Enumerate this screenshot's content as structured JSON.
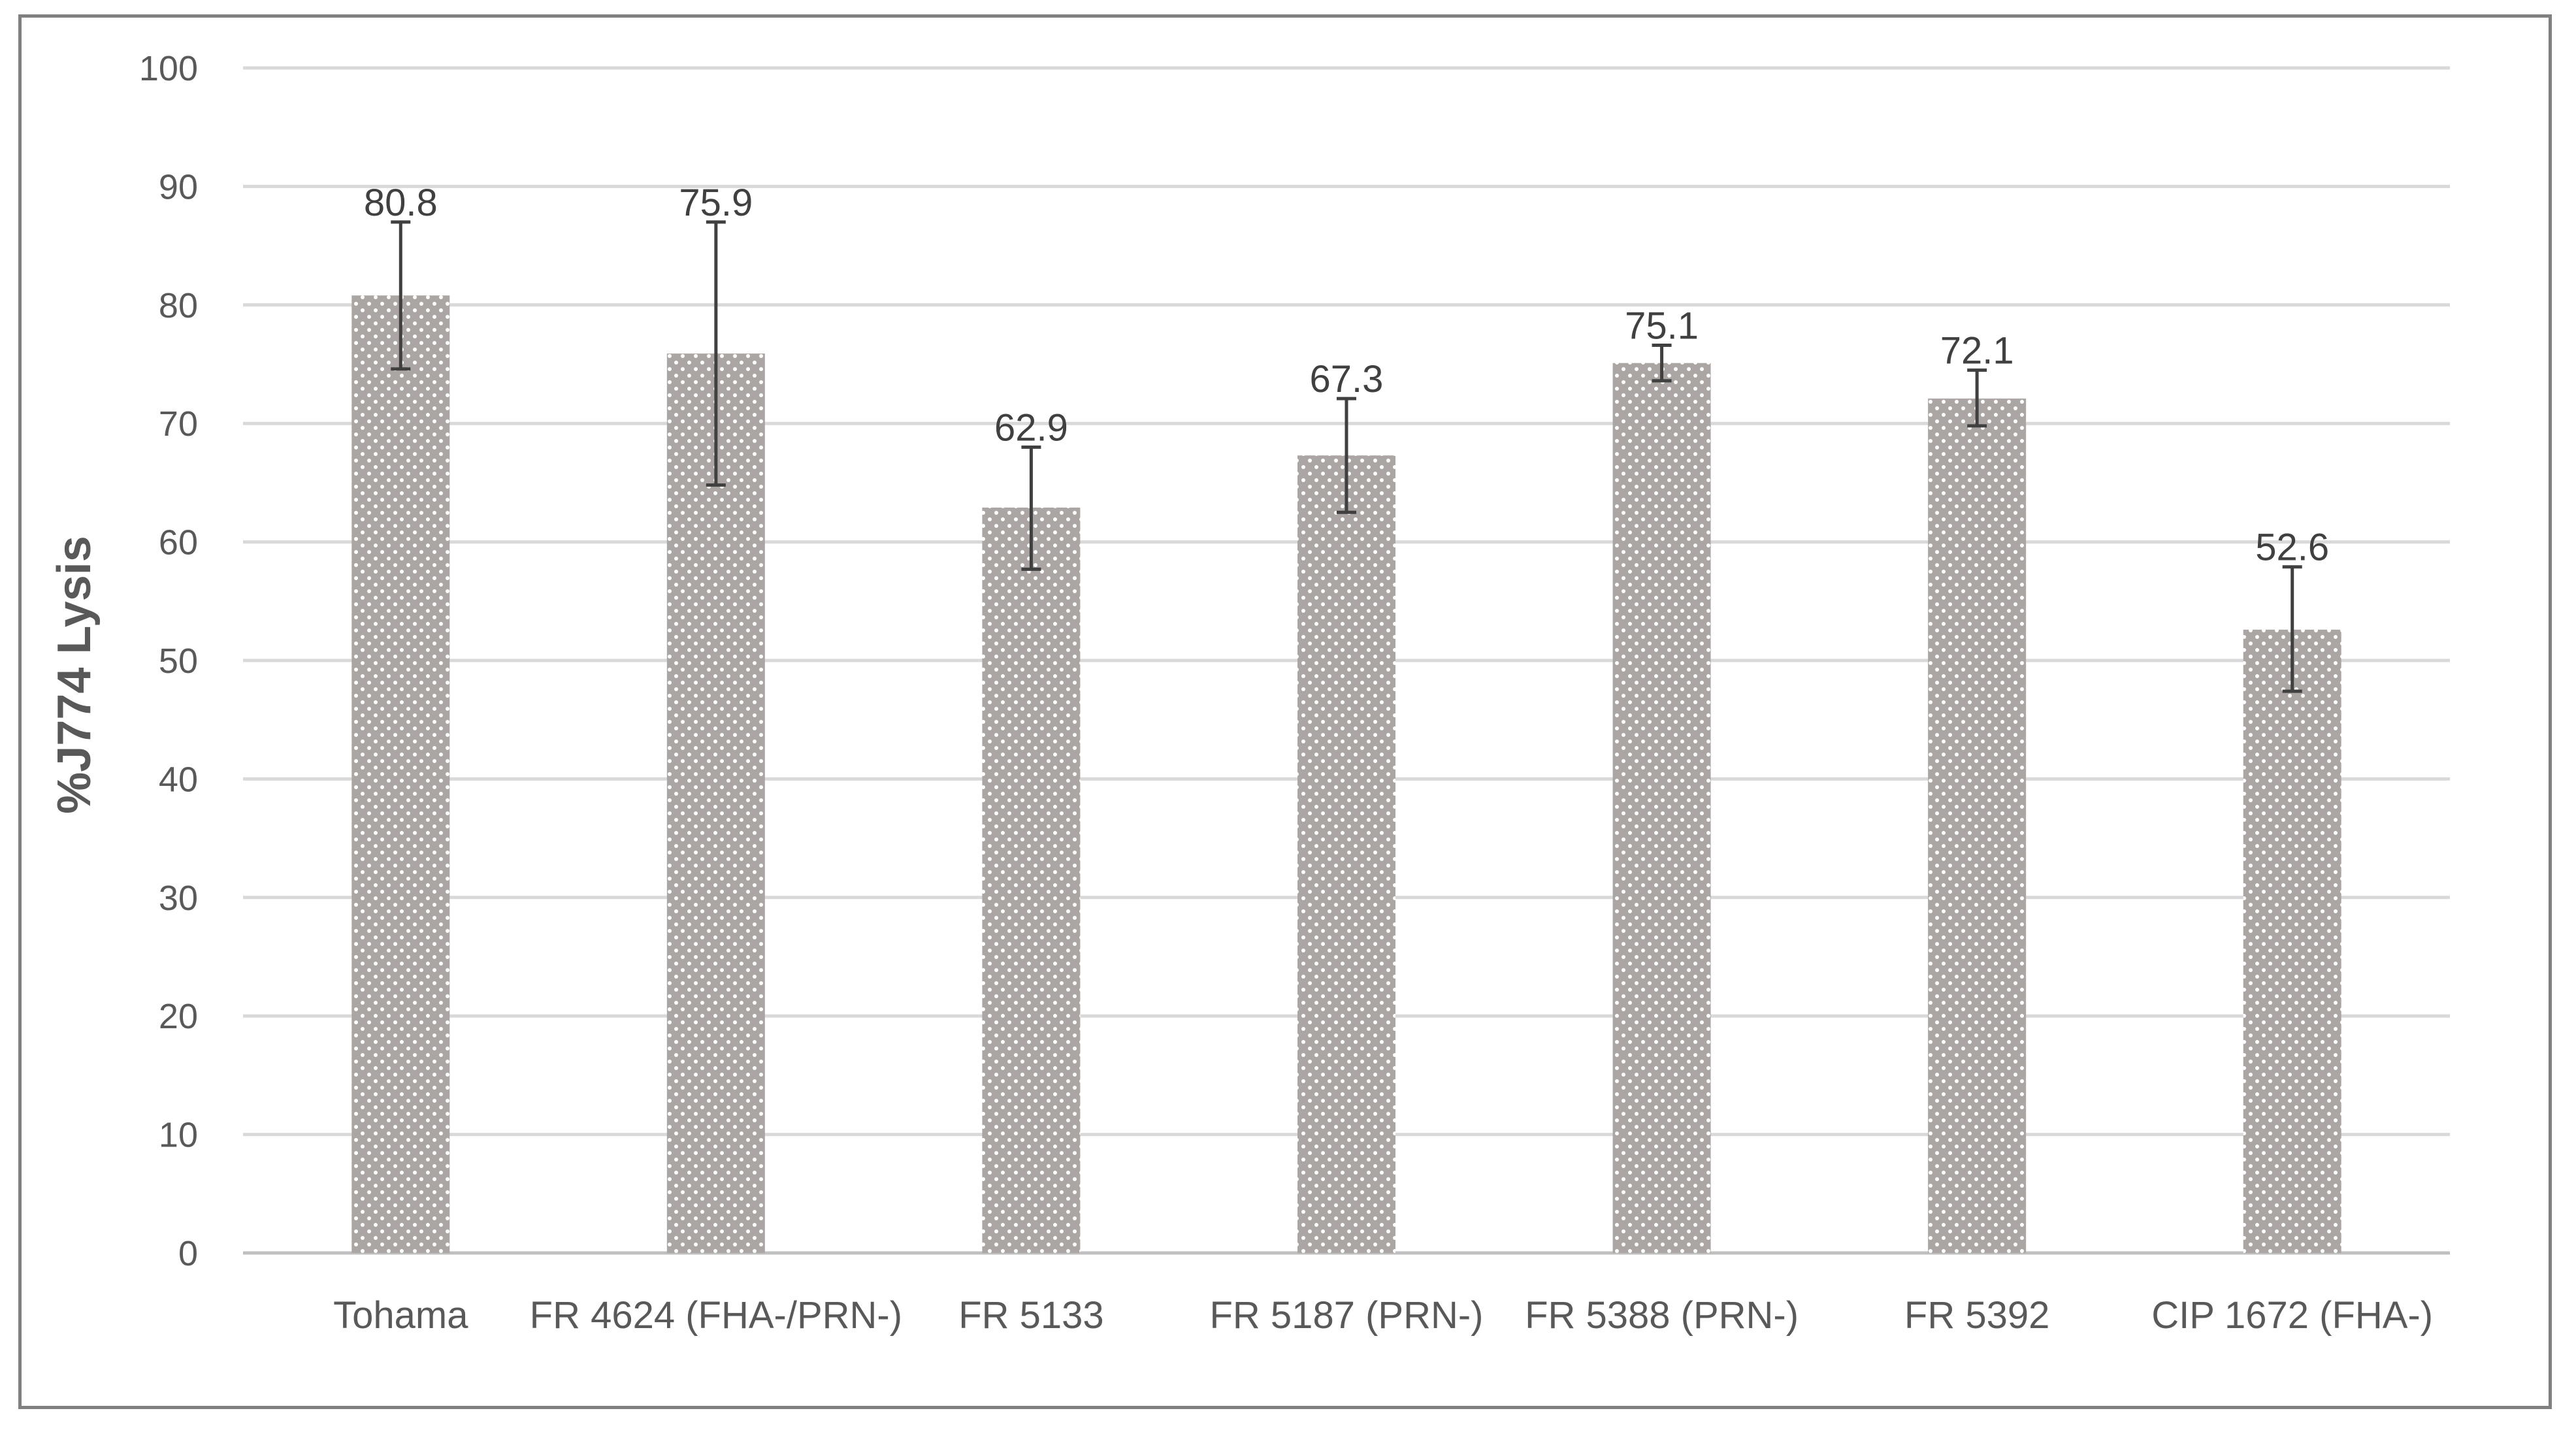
{
  "chart_data": {
    "type": "bar",
    "title": "",
    "xlabel": "",
    "ylabel": "%J774 Lysis",
    "ylim": [
      0,
      100
    ],
    "yticks": [
      0,
      10,
      20,
      30,
      40,
      50,
      60,
      70,
      80,
      90,
      100
    ],
    "grid": true,
    "legend": "none",
    "categories": [
      "Tohama",
      "FR 4624 (FHA-/PRN-)",
      "FR 5133",
      "FR 5187 (PRN-)",
      "FR 5388 (PRN-)",
      "FR 5392",
      "CIP 1672 (FHA-)"
    ],
    "values": [
      80.8,
      75.9,
      62.9,
      67.3,
      75.1,
      72.1,
      52.6
    ],
    "data_labels": [
      "80.8",
      "75.9",
      "62.9",
      "67.3",
      "75.1",
      "72.1",
      "52.6"
    ],
    "error_bars": [
      {
        "low": 74.6,
        "high": 87.0
      },
      {
        "low": 64.8,
        "high": 87.0
      },
      {
        "low": 57.7,
        "high": 68.0
      },
      {
        "low": 62.5,
        "high": 72.1
      },
      {
        "low": 73.6,
        "high": 76.6
      },
      {
        "low": 69.8,
        "high": 74.5
      },
      {
        "low": 47.4,
        "high": 57.9
      }
    ],
    "colors": {
      "bar": "#aba6a4",
      "bar_dot": "#ffffff",
      "grid": "#d9d9d9",
      "axis": "#bfbfbf",
      "error_bar": "#404040",
      "frame": "#808080"
    }
  }
}
